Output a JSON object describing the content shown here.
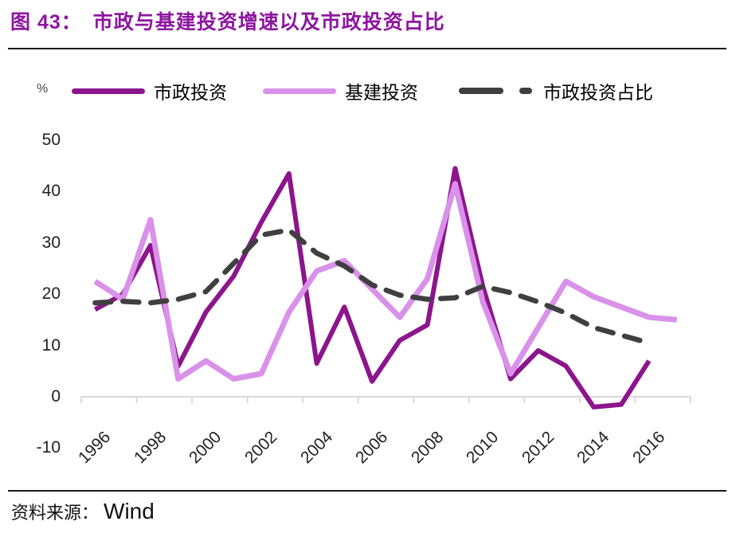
{
  "header": {
    "title_prefix": "图 43：",
    "title_text": "市政与基建投资增速以及市政投资占比",
    "title_color": "#8E16A0"
  },
  "axis_unit": "%",
  "legend": [
    {
      "label": "市政投资",
      "color": "#8C158C",
      "dashed": false
    },
    {
      "label": "基建投资",
      "color": "#D991E9",
      "dashed": false
    },
    {
      "label": "市政投资占比",
      "color": "#3F3F3F",
      "dashed": true
    }
  ],
  "footer": {
    "source_label": "资料来源：",
    "source_value": "Wind"
  },
  "chart_data": {
    "type": "line",
    "title": "市政与基建投资增速以及市政投资占比",
    "ylabel": "%",
    "ylim": [
      -10,
      50
    ],
    "yticks": [
      50,
      40,
      30,
      20,
      10,
      0,
      -10
    ],
    "xticks": [
      1996,
      1998,
      2000,
      2002,
      2004,
      2006,
      2008,
      2010,
      2012,
      2014,
      2016
    ],
    "grid": false,
    "legend_position": "top",
    "x": [
      1996,
      1997,
      1998,
      1999,
      2000,
      2001,
      2002,
      2003,
      2004,
      2005,
      2006,
      2007,
      2008,
      2009,
      2010,
      2011,
      2012,
      2013,
      2014,
      2015,
      2016,
      2017
    ],
    "series": [
      {
        "name": "市政投资",
        "key": "municipal-investment",
        "color": "#8C158C",
        "dashed": false,
        "values": [
          17,
          20,
          29.5,
          6,
          16.5,
          23.5,
          34,
          43.5,
          6.5,
          17.5,
          3,
          11,
          14,
          44.5,
          21.5,
          3.5,
          9,
          6,
          -2,
          -1.5,
          7,
          null
        ]
      },
      {
        "name": "基建投资",
        "key": "infrastructure-investment",
        "color": "#D991E9",
        "dashed": false,
        "values": [
          22.5,
          19,
          34.5,
          3.5,
          7,
          3.5,
          4.5,
          16.5,
          24.5,
          26.5,
          21,
          15.5,
          23,
          41.5,
          18.5,
          4.5,
          13.5,
          22.5,
          19.5,
          17.5,
          15.5,
          15
        ]
      },
      {
        "name": "市政投资占比",
        "key": "municipal-share",
        "color": "#3F3F3F",
        "dashed": true,
        "values": [
          18.3,
          18.6,
          18.3,
          19,
          20.5,
          26,
          31.5,
          32.5,
          28,
          25.5,
          21.8,
          19.8,
          19,
          19.3,
          21.5,
          20.3,
          18.5,
          16.3,
          13.5,
          12,
          10.5,
          null
        ]
      }
    ]
  }
}
